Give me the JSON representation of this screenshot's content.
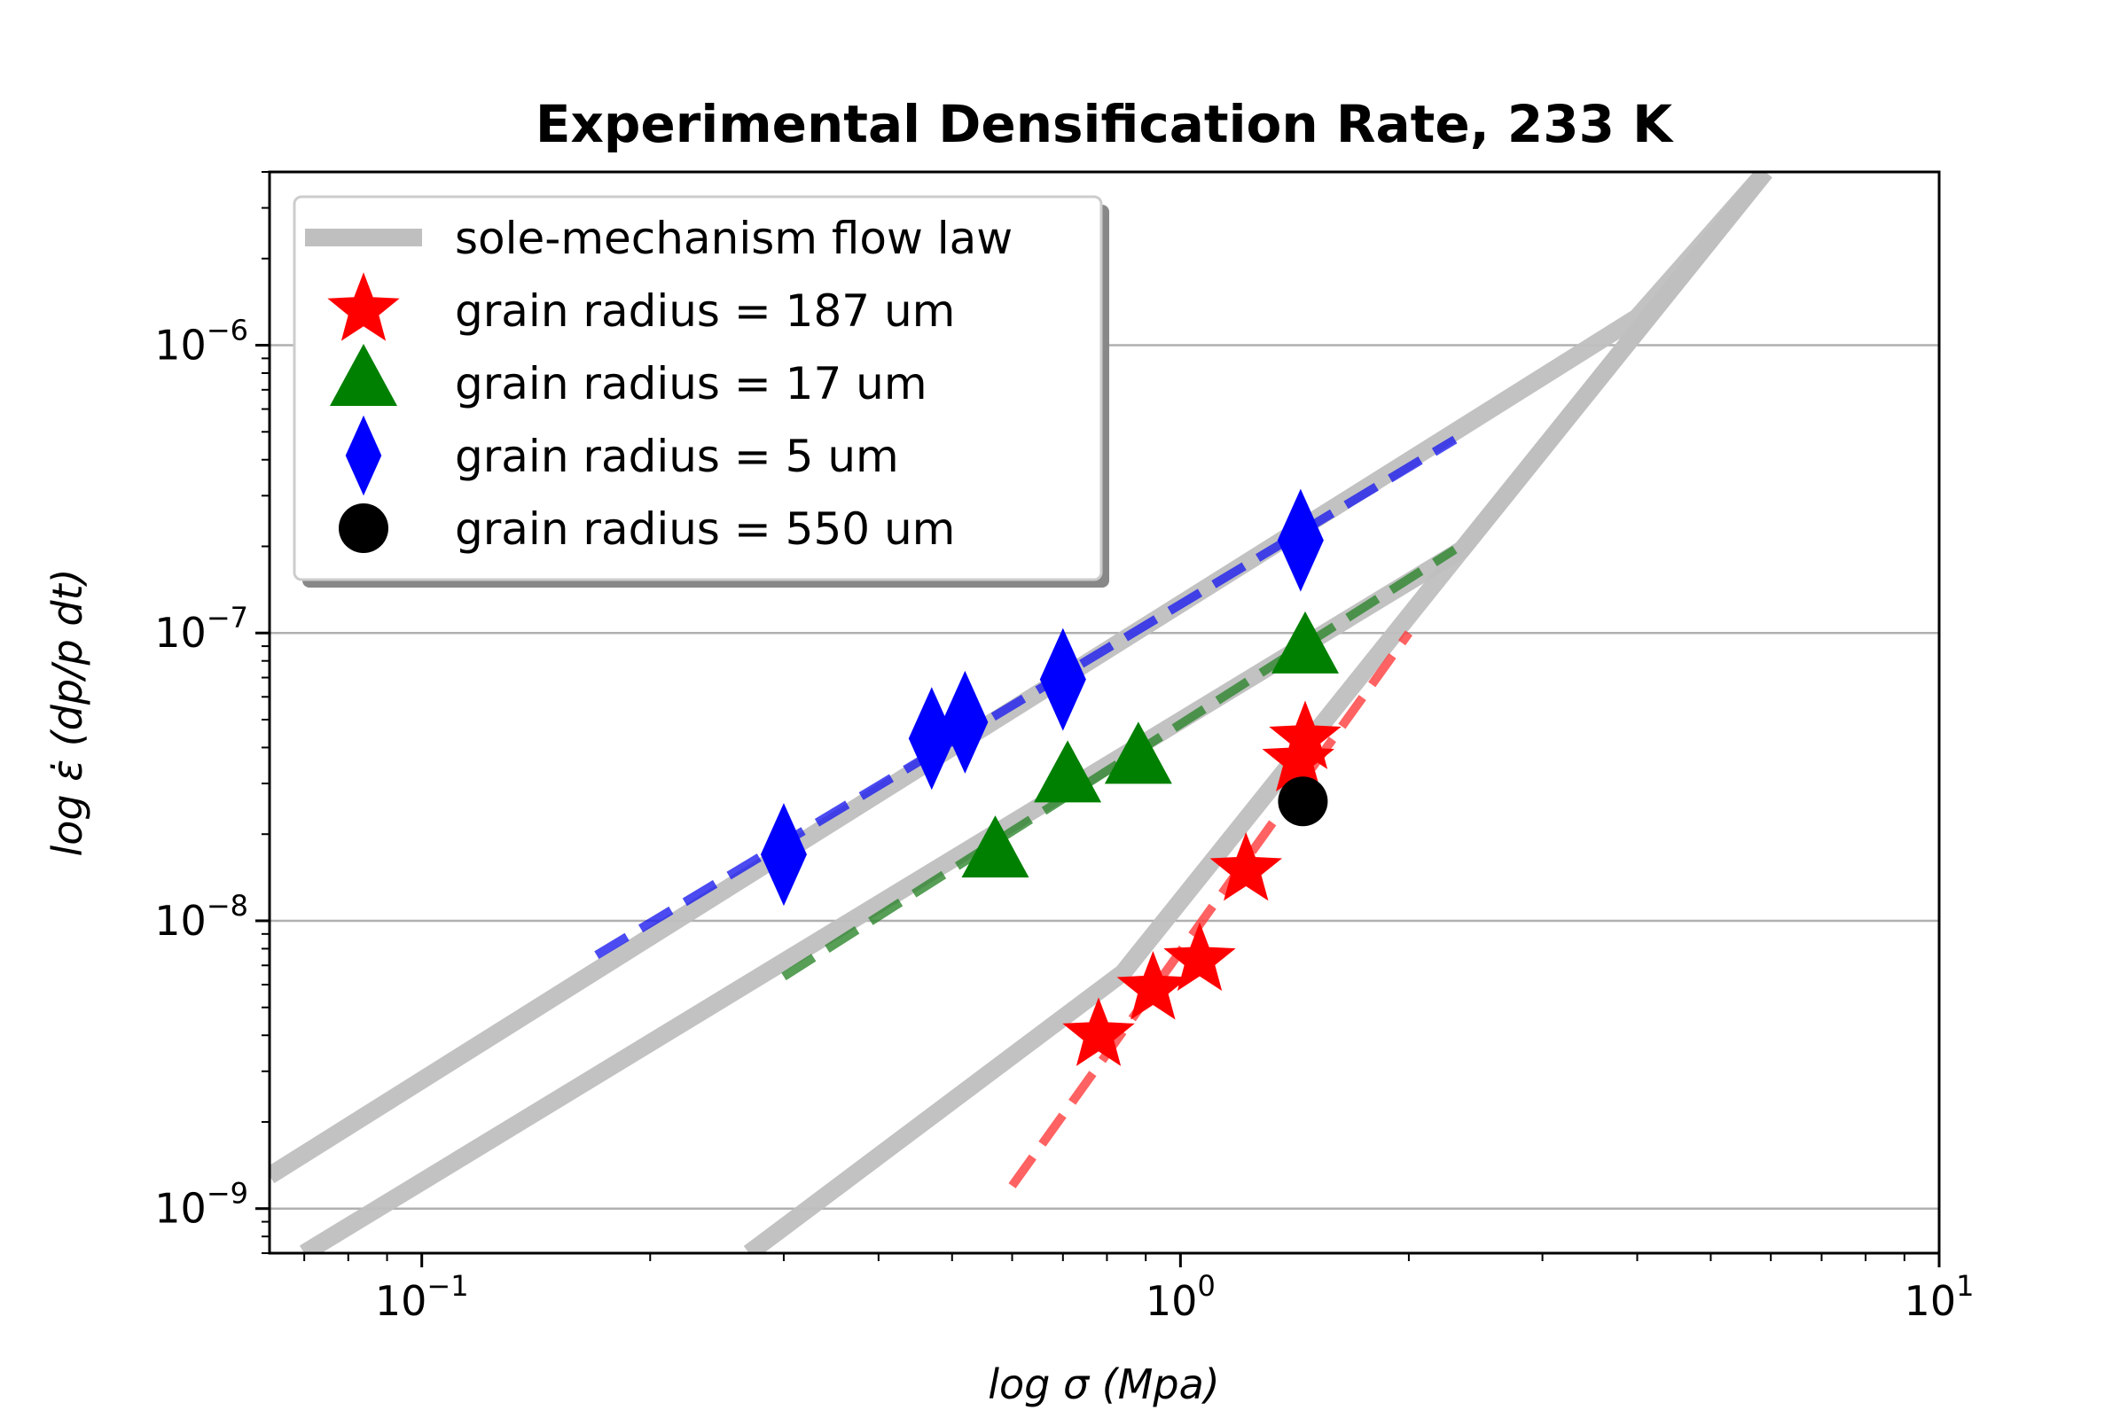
{
  "chart_data": {
    "type": "scatter",
    "title": "Experimental Densification Rate, 233 K",
    "xlabel": "log σ (Mpa)",
    "ylabel": "log ε̇ (dp/p dt)",
    "xscale": "log",
    "yscale": "log",
    "xlim": [
      0.063,
      10
    ],
    "ylim": [
      7e-10,
      4e-06
    ],
    "x_ticks": [
      {
        "value": 0.1,
        "base": "10",
        "exp": "−1"
      },
      {
        "value": 1,
        "base": "10",
        "exp": "0"
      },
      {
        "value": 10,
        "base": "10",
        "exp": "1"
      }
    ],
    "y_ticks": [
      {
        "value": 1e-09,
        "base": "10",
        "exp": "−9"
      },
      {
        "value": 1e-08,
        "base": "10",
        "exp": "−8"
      },
      {
        "value": 1e-07,
        "base": "10",
        "exp": "−7"
      },
      {
        "value": 1e-06,
        "base": "10",
        "exp": "−6"
      }
    ],
    "grid": "horizontal major",
    "legend_position": "upper-left",
    "flow_laws": [
      {
        "name": "sole-mechanism flow law",
        "color": "#bfbfbf",
        "x": [
          0.063,
          4.0,
          5.9
        ],
        "y": [
          1.3e-09,
          1.25e-06,
          4e-06
        ]
      },
      {
        "name": "",
        "color": "#bfbfbf",
        "x": [
          0.07,
          2.35,
          5.9
        ],
        "y": [
          7e-10,
          1.95e-07,
          4e-06
        ]
      },
      {
        "name": "",
        "color": "#bfbfbf",
        "x": [
          0.27,
          0.84,
          2.35,
          5.9
        ],
        "y": [
          7e-10,
          6.6e-09,
          1.95e-07,
          4e-06
        ]
      }
    ],
    "fits": [
      {
        "color": "#1f1fee",
        "x": [
          0.17,
          2.3
        ],
        "y": [
          7.6e-09,
          4.7e-07
        ]
      },
      {
        "color": "#2e862e",
        "x": [
          0.3,
          2.3
        ],
        "y": [
          6.4e-09,
          1.95e-07
        ]
      },
      {
        "color": "#ff3b3b",
        "x": [
          0.6,
          2.0
        ],
        "y": [
          1.2e-09,
          1e-07
        ]
      }
    ],
    "series": [
      {
        "name": "grain radius = 187 um",
        "marker": "star",
        "color": "#ff0000",
        "x": [
          0.78,
          0.92,
          1.06,
          1.22,
          1.43,
          1.46
        ],
        "y": [
          4e-09,
          5.8e-09,
          7.3e-09,
          1.5e-08,
          3.6e-08,
          4.3e-08
        ]
      },
      {
        "name": "grain radius = 17 um",
        "marker": "triangle",
        "color": "#008000",
        "x": [
          0.57,
          0.71,
          0.88,
          1.46
        ],
        "y": [
          1.7e-08,
          3.1e-08,
          3.6e-08,
          8.7e-08
        ]
      },
      {
        "name": "grain radius = 5 um",
        "marker": "diamond",
        "color": "#0000ff",
        "x": [
          0.3,
          0.47,
          0.52,
          0.7,
          1.44
        ],
        "y": [
          1.7e-08,
          4.3e-08,
          4.9e-08,
          6.9e-08,
          2.1e-07
        ]
      },
      {
        "name": "grain radius = 550 um",
        "marker": "circle",
        "color": "#000000",
        "x": [
          1.45
        ],
        "y": [
          2.6e-08
        ]
      }
    ]
  }
}
